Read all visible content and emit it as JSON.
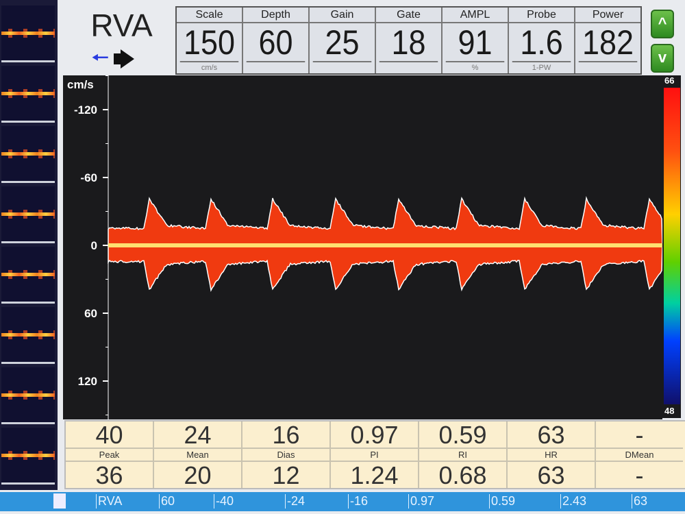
{
  "header": {
    "vessel": "RVA",
    "direction_icon": "arrow-left-icon",
    "probe_icon": "probe-icon"
  },
  "params": [
    {
      "label": "Scale",
      "value": "150",
      "unit": "cm/s"
    },
    {
      "label": "Depth",
      "value": "60",
      "unit": ""
    },
    {
      "label": "Gain",
      "value": "25",
      "unit": ""
    },
    {
      "label": "Gate",
      "value": "18",
      "unit": ""
    },
    {
      "label": "AMPL",
      "value": "91",
      "unit": "%"
    },
    {
      "label": "Probe",
      "value": "1.6",
      "unit": "1-PW"
    },
    {
      "label": "Power",
      "value": "182",
      "unit": ""
    }
  ],
  "buttons": {
    "up": "^",
    "down": "v"
  },
  "spectrum": {
    "unit": "cm/s",
    "ticks": [
      "-120",
      "-60",
      "0",
      "60",
      "120"
    ],
    "colorbar_max": "66",
    "colorbar_min": "48",
    "colors": {
      "flow": "#f03a10",
      "envelope": "#ffffff",
      "background": "#1a1a1c"
    }
  },
  "stats": {
    "labels": [
      "Peak",
      "Mean",
      "Dias",
      "PI",
      "RI",
      "HR",
      "DMean"
    ],
    "row1": [
      "40",
      "24",
      "16",
      "0.97",
      "0.59",
      "63",
      "-"
    ],
    "row2": [
      "36",
      "20",
      "12",
      "1.24",
      "0.68",
      "63",
      "-"
    ]
  },
  "statusbar": [
    "RVA",
    "60",
    "-40",
    "-24",
    "-16",
    "0.97",
    "0.59",
    "2.43",
    "63"
  ]
}
